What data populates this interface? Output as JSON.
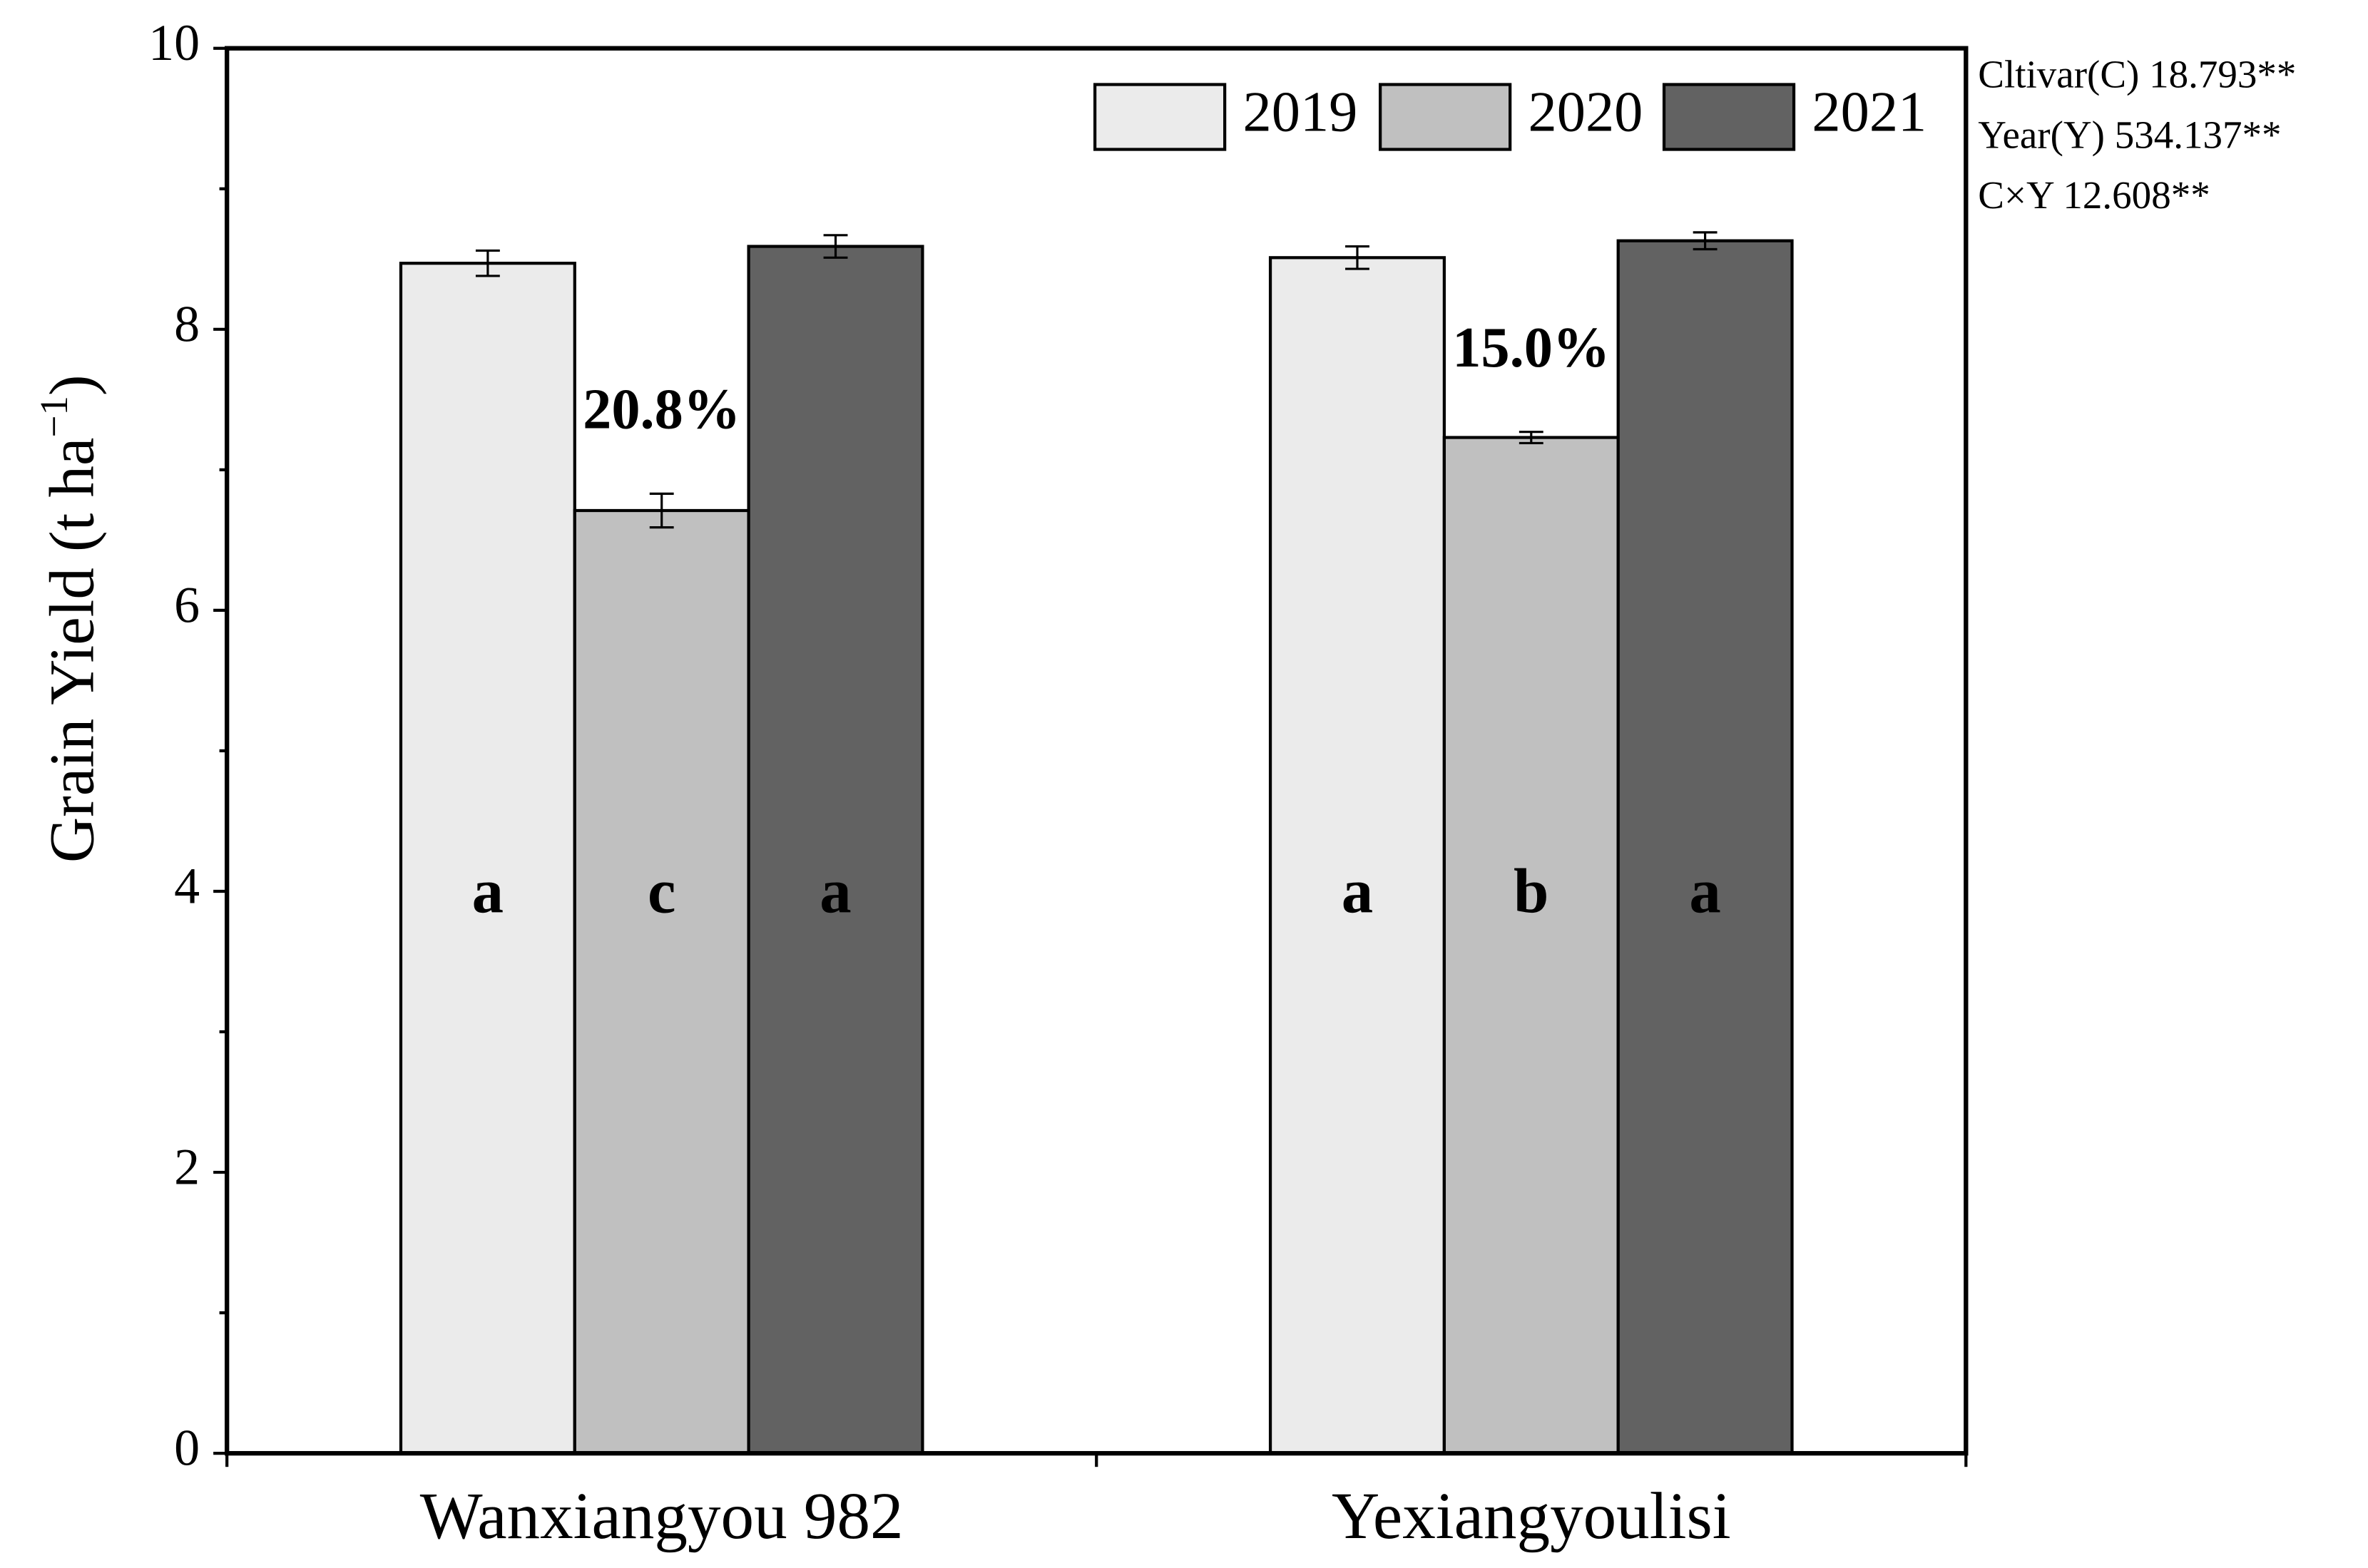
{
  "chart_data": {
    "type": "bar",
    "categories": [
      "Wanxiangyou 982",
      "Yexiangyoulisi"
    ],
    "series": [
      {
        "name": "2019",
        "color": "#ebebeb",
        "values": [
          8.47,
          8.51
        ],
        "errors": [
          0.09,
          0.08
        ],
        "letters": [
          "a",
          "a"
        ]
      },
      {
        "name": "2020",
        "color": "#c0c0c0",
        "values": [
          6.71,
          7.23
        ],
        "errors": [
          0.12,
          0.04
        ],
        "letters": [
          "c",
          "b"
        ],
        "notes": [
          "20.8%",
          "15.0%"
        ]
      },
      {
        "name": "2021",
        "color": "#626262",
        "values": [
          8.59,
          8.63
        ],
        "errors": [
          0.08,
          0.06
        ],
        "letters": [
          "a",
          "a"
        ]
      }
    ],
    "ylabel": [
      "Grain Yield (t ha",
      "−1",
      ")"
    ],
    "ylim": [
      0,
      10
    ],
    "yticks": [
      0,
      2,
      4,
      6,
      8,
      10
    ],
    "legend": "top-right",
    "stats": [
      "Cltivar(C) 18.793**",
      "Year(Y) 534.137**",
      "C×Y 12.608**"
    ],
    "note_color": "#118011",
    "letter_color": "#ffffff"
  }
}
